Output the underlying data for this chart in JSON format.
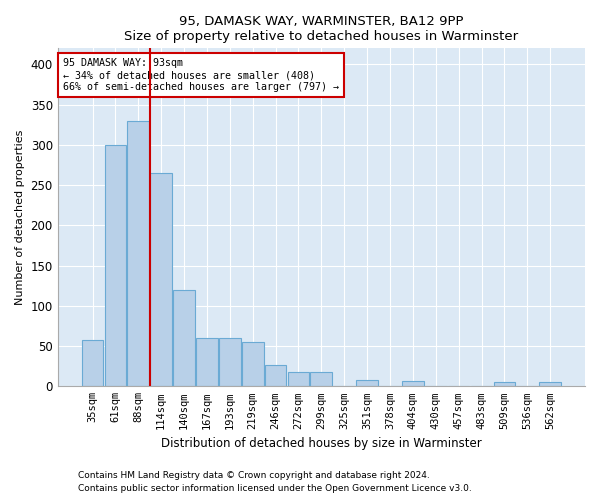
{
  "title1": "95, DAMASK WAY, WARMINSTER, BA12 9PP",
  "title2": "Size of property relative to detached houses in Warminster",
  "xlabel": "Distribution of detached houses by size in Warminster",
  "ylabel": "Number of detached properties",
  "footer1": "Contains HM Land Registry data © Crown copyright and database right 2024.",
  "footer2": "Contains public sector information licensed under the Open Government Licence v3.0.",
  "annotation_line1": "95 DAMASK WAY: 93sqm",
  "annotation_line2": "← 34% of detached houses are smaller (408)",
  "annotation_line3": "66% of semi-detached houses are larger (797) →",
  "bar_color": "#b8d0e8",
  "bar_edge_color": "#6aaad4",
  "vline_color": "#cc0000",
  "annotation_box_edge": "#cc0000",
  "background_color": "#dce9f5",
  "categories": [
    "35sqm",
    "61sqm",
    "88sqm",
    "114sqm",
    "140sqm",
    "167sqm",
    "193sqm",
    "219sqm",
    "246sqm",
    "272sqm",
    "299sqm",
    "325sqm",
    "351sqm",
    "378sqm",
    "404sqm",
    "430sqm",
    "457sqm",
    "483sqm",
    "509sqm",
    "536sqm",
    "562sqm"
  ],
  "values": [
    57,
    300,
    330,
    265,
    120,
    60,
    60,
    55,
    27,
    18,
    18,
    0,
    8,
    0,
    6,
    0,
    0,
    0,
    5,
    0,
    5
  ],
  "ylim": [
    0,
    420
  ],
  "yticks": [
    0,
    50,
    100,
    150,
    200,
    250,
    300,
    350,
    400
  ],
  "vline_position": 2.5,
  "figsize": [
    6.0,
    5.0
  ],
  "dpi": 100
}
